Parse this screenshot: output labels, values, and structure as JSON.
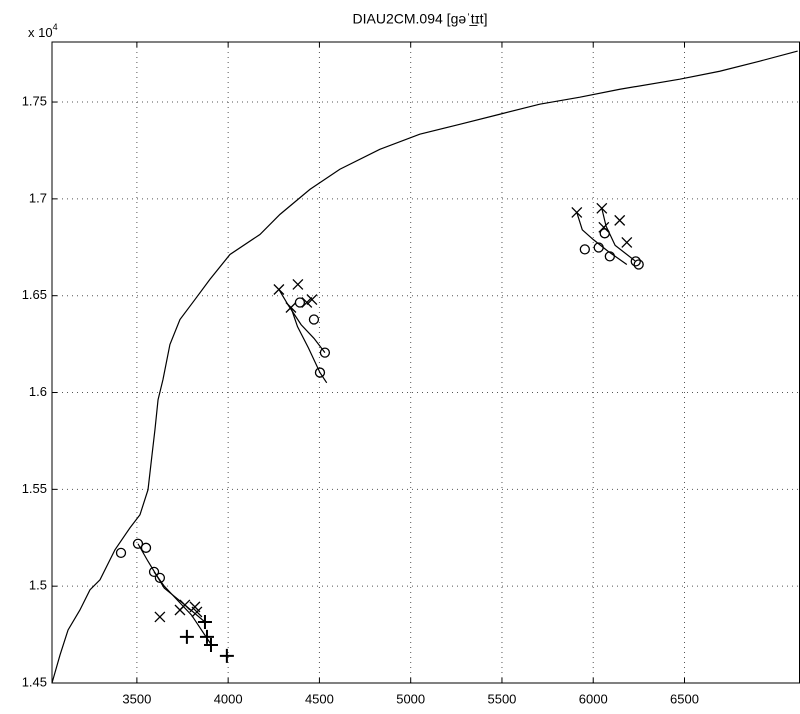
{
  "chart_data": {
    "type": "line",
    "title": "DIAU2CM.094 [gəˈt̲ɪt]",
    "y_multiplier": {
      "base": "x 10",
      "exponent": "4"
    },
    "xlim": [
      3035,
      7130
    ],
    "ylim": [
      14500,
      17810
    ],
    "xticks": [
      3500,
      4000,
      4500,
      5000,
      5500,
      6000,
      6500
    ],
    "yticks": [
      {
        "value": 14500,
        "label": "1.45"
      },
      {
        "value": 15000,
        "label": "1.5"
      },
      {
        "value": 15500,
        "label": "1.55"
      },
      {
        "value": 16000,
        "label": "1.6"
      },
      {
        "value": 16500,
        "label": "1.65"
      },
      {
        "value": 17000,
        "label": "1.7"
      },
      {
        "value": 17500,
        "label": "1.75"
      }
    ],
    "grid": true,
    "series": [
      {
        "color": "#000000",
        "marker": "none",
        "linestyle": "solid",
        "x": [
          3035,
          3079,
          3123,
          3188,
          3243,
          3298,
          3380,
          3462,
          3517,
          3561,
          3583,
          3599,
          3616,
          3643,
          3681,
          3736,
          3818,
          3900,
          4010,
          4174,
          4284,
          4448,
          4612,
          4831,
          5050,
          5269,
          5488,
          5707,
          5927,
          6146,
          6474,
          6693,
          6912,
          7120
        ],
        "values": [
          14500,
          14645,
          14774,
          14877,
          14981,
          15033,
          15188,
          15301,
          15369,
          15498,
          15679,
          15808,
          15963,
          16067,
          16248,
          16377,
          16480,
          16584,
          16713,
          16816,
          16920,
          17049,
          17153,
          17256,
          17334,
          17385,
          17437,
          17489,
          17525,
          17566,
          17618,
          17659,
          17711,
          17763
        ]
      },
      {
        "color": "#000000",
        "marker": "none",
        "linestyle": "solid",
        "x": [
          3594,
          3650,
          3720,
          3800,
          3906
        ],
        "values": [
          15074,
          15000,
          14930,
          14850,
          14700
        ]
      },
      {
        "color": "#000000",
        "marker": "none",
        "linestyle": "solid",
        "x": [
          3506,
          3560,
          3650,
          3763,
          3873
        ],
        "values": [
          15219,
          15130,
          14990,
          14903,
          14815
        ]
      },
      {
        "color": "#000000",
        "marker": "none",
        "linestyle": "solid",
        "x": [
          4278,
          4330,
          4400,
          4470,
          4530
        ],
        "values": [
          16532,
          16450,
          16350,
          16280,
          16206
        ]
      },
      {
        "color": "#000000",
        "marker": "none",
        "linestyle": "solid",
        "x": [
          4344,
          4380,
          4440,
          4503,
          4540
        ],
        "values": [
          16439,
          16340,
          16230,
          16103,
          16050
        ]
      },
      {
        "color": "#000000",
        "marker": "none",
        "linestyle": "solid",
        "x": [
          5910,
          5940,
          6000,
          6080,
          6184
        ],
        "values": [
          16930,
          16840,
          16790,
          16730,
          16661
        ]
      },
      {
        "color": "#000000",
        "marker": "none",
        "linestyle": "solid",
        "x": [
          6047,
          6070,
          6120,
          6233
        ],
        "values": [
          16951,
          16860,
          16760,
          16677
        ]
      },
      {
        "color": "#000000",
        "marker": "x",
        "linestyle": "none",
        "x": [
          3626,
          3736,
          3763,
          3818,
          3829,
          4278,
          4344,
          4382,
          4431,
          4459,
          5910,
          6047,
          6145,
          6184,
          6058
        ],
        "values": [
          14841,
          14877,
          14903,
          14893,
          14867,
          16532,
          16439,
          16558,
          16465,
          16480,
          16930,
          16951,
          16889,
          16775,
          16853
        ]
      },
      {
        "color": "#000000",
        "marker": "o",
        "linestyle": "none",
        "x": [
          3413,
          3506,
          3550,
          3594,
          3626,
          4530,
          4393,
          4470,
          4503,
          5954,
          6030,
          6063,
          6091,
          6233,
          6249
        ],
        "values": [
          15172,
          15219,
          15198,
          15074,
          15043,
          16206,
          16465,
          16377,
          16103,
          16739,
          16749,
          16822,
          16703,
          16677,
          16661
        ]
      },
      {
        "color": "#000000",
        "marker": "+",
        "linestyle": "none",
        "x": [
          3774,
          3873,
          3884,
          3906,
          3993
        ],
        "values": [
          14738,
          14815,
          14738,
          14696,
          14640
        ]
      }
    ]
  }
}
